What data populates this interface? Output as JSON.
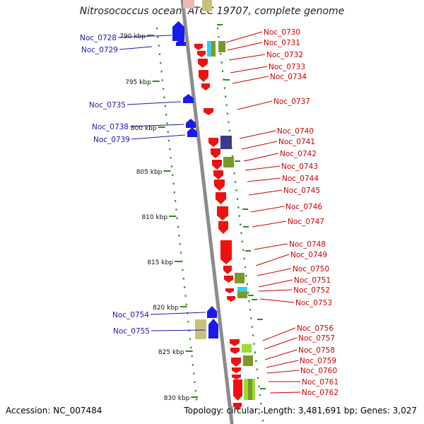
{
  "title": "Nitrosococcus oceani ATCC 19707, complete genome",
  "footer": {
    "accession": "Accession: NC_007484",
    "summary": "Topology: circular; Length: 3,481,691 bp; Genes: 3,027"
  },
  "colors": {
    "forward_gene": "#ee1111",
    "reverse_gene": "#1a1aee",
    "forward_label": "#cc0000",
    "reverse_label": "#1a1aaa",
    "axis": "#8c8c8c",
    "ticks": "#2e8b22",
    "olive": "#7a9a28",
    "lightgreen": "#99dd33",
    "khaki": "#c8c07a",
    "cyan": "#33ccee",
    "navy": "#3a3a8a"
  },
  "scale_labels": [
    "790 kbp",
    "795 kbp",
    "800 kbp",
    "805 kbp",
    "810 kbp",
    "815 kbp",
    "820 kbp",
    "825 kbp",
    "830 kbp"
  ],
  "reverse_genes": [
    "Noc_0728",
    "Noc_0729",
    "Noc_0735",
    "Noc_0738",
    "Noc_0739",
    "Noc_0754",
    "Noc_0755"
  ],
  "forward_genes": [
    "Noc_0730",
    "Noc_0731",
    "Noc_0732",
    "Noc_0733",
    "Noc_0734",
    "Noc_0737",
    "Noc_0740",
    "Noc_0741",
    "Noc_0742",
    "Noc_0743",
    "Noc_0744",
    "Noc_0745",
    "Noc_0746",
    "Noc_0747",
    "Noc_0748",
    "Noc_0749",
    "Noc_0750",
    "Noc_0751",
    "Noc_0752",
    "Noc_0753",
    "Noc_0756",
    "Noc_0757",
    "Noc_0758",
    "Noc_0759",
    "Noc_0760",
    "Noc_0761",
    "Noc_0762"
  ]
}
